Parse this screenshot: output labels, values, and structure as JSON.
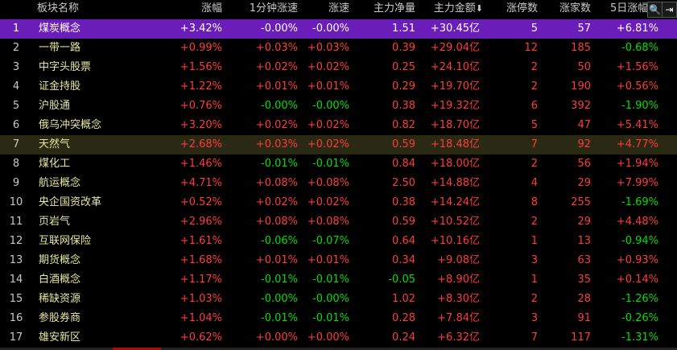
{
  "header": {
    "name": "板块名称",
    "change": "涨幅",
    "change_1min": "1分钟涨速",
    "speed": "涨速",
    "main_net": "主力净量",
    "main_amount": "主力金额",
    "sort_arrow": "⬇",
    "limit_up": "涨停数",
    "rise_count": "涨家数",
    "change_5d": "5日涨幅"
  },
  "buttons": {
    "search_glyph": "🔍",
    "nav_glyph": "⇥"
  },
  "rows": [
    {
      "idx": "1",
      "name": "煤炭概念",
      "change": "+3.42%",
      "change_1min": "-0.00%",
      "speed": "-0.00%",
      "main_net": "1.51",
      "main_amount": "+30.45亿",
      "limit_up": "5",
      "rise_count": "57",
      "change_5d": "+6.81%"
    },
    {
      "idx": "2",
      "name": "一带一路",
      "change": "+0.99%",
      "change_1min": "+0.03%",
      "speed": "+0.03%",
      "main_net": "0.39",
      "main_amount": "+29.04亿",
      "limit_up": "12",
      "rise_count": "185",
      "change_5d": "-0.68%"
    },
    {
      "idx": "3",
      "name": "中字头股票",
      "change": "+1.56%",
      "change_1min": "+0.02%",
      "speed": "+0.02%",
      "main_net": "0.25",
      "main_amount": "+24.10亿",
      "limit_up": "2",
      "rise_count": "50",
      "change_5d": "+1.56%"
    },
    {
      "idx": "4",
      "name": "证金持股",
      "change": "+1.22%",
      "change_1min": "+0.01%",
      "speed": "+0.01%",
      "main_net": "0.29",
      "main_amount": "+19.70亿",
      "limit_up": "2",
      "rise_count": "190",
      "change_5d": "+0.56%"
    },
    {
      "idx": "5",
      "name": "沪股通",
      "change": "+0.76%",
      "change_1min": "-0.00%",
      "speed": "-0.00%",
      "main_net": "0.38",
      "main_amount": "+19.32亿",
      "limit_up": "6",
      "rise_count": "392",
      "change_5d": "-1.90%"
    },
    {
      "idx": "6",
      "name": "俄乌冲突概念",
      "change": "+3.20%",
      "change_1min": "+0.02%",
      "speed": "+0.02%",
      "main_net": "0.82",
      "main_amount": "+18.70亿",
      "limit_up": "5",
      "rise_count": "47",
      "change_5d": "+5.41%"
    },
    {
      "idx": "7",
      "name": "天然气",
      "change": "+2.68%",
      "change_1min": "+0.03%",
      "speed": "+0.02%",
      "main_net": "0.59",
      "main_amount": "+18.48亿",
      "limit_up": "7",
      "rise_count": "92",
      "change_5d": "+4.77%"
    },
    {
      "idx": "8",
      "name": "煤化工",
      "change": "+1.46%",
      "change_1min": "-0.01%",
      "speed": "-0.01%",
      "main_net": "0.84",
      "main_amount": "+18.00亿",
      "limit_up": "2",
      "rise_count": "56",
      "change_5d": "+1.94%"
    },
    {
      "idx": "9",
      "name": "航运概念",
      "change": "+4.71%",
      "change_1min": "+0.08%",
      "speed": "+0.08%",
      "main_net": "2.50",
      "main_amount": "+14.88亿",
      "limit_up": "4",
      "rise_count": "29",
      "change_5d": "+7.99%"
    },
    {
      "idx": "10",
      "name": "央企国资改革",
      "change": "+0.52%",
      "change_1min": "+0.02%",
      "speed": "+0.02%",
      "main_net": "0.38",
      "main_amount": "+14.24亿",
      "limit_up": "8",
      "rise_count": "255",
      "change_5d": "-1.69%"
    },
    {
      "idx": "11",
      "name": "页岩气",
      "change": "+2.96%",
      "change_1min": "+0.08%",
      "speed": "+0.08%",
      "main_net": "0.59",
      "main_amount": "+10.52亿",
      "limit_up": "2",
      "rise_count": "29",
      "change_5d": "+4.48%"
    },
    {
      "idx": "12",
      "name": "互联网保险",
      "change": "+1.61%",
      "change_1min": "-0.06%",
      "speed": "-0.07%",
      "main_net": "0.64",
      "main_amount": "+10.16亿",
      "limit_up": "1",
      "rise_count": "13",
      "change_5d": "-0.94%"
    },
    {
      "idx": "13",
      "name": "期货概念",
      "change": "+1.68%",
      "change_1min": "+0.01%",
      "speed": "+0.01%",
      "main_net": "0.34",
      "main_amount": "+9.08亿",
      "limit_up": "3",
      "rise_count": "63",
      "change_5d": "+0.93%"
    },
    {
      "idx": "14",
      "name": "白酒概念",
      "change": "+1.17%",
      "change_1min": "-0.01%",
      "speed": "-0.01%",
      "main_net": "-0.05",
      "main_amount": "+8.90亿",
      "limit_up": "1",
      "rise_count": "35",
      "change_5d": "+0.14%"
    },
    {
      "idx": "15",
      "name": "稀缺资源",
      "change": "+1.03%",
      "change_1min": "-0.00%",
      "speed": "-0.00%",
      "main_net": "1.02",
      "main_amount": "+8.30亿",
      "limit_up": "2",
      "rise_count": "28",
      "change_5d": "-1.26%"
    },
    {
      "idx": "16",
      "name": "参股券商",
      "change": "+1.04%",
      "change_1min": "-0.01%",
      "speed": "-0.01%",
      "main_net": "0.28",
      "main_amount": "+7.84亿",
      "limit_up": "3",
      "rise_count": "91",
      "change_5d": "-0.26%"
    },
    {
      "idx": "17",
      "name": "雄安新区",
      "change": "+0.62%",
      "change_1min": "+0.00%",
      "speed": "+0.00%",
      "main_net": "0.24",
      "main_amount": "+6.32亿",
      "limit_up": "7",
      "rise_count": "117",
      "change_5d": "-1.31%"
    }
  ],
  "colors": {
    "up": "#ff3b3b",
    "down": "#00e000",
    "name": "#e6e6a0",
    "selected_bg": "#6a1db8",
    "background": "#000000"
  }
}
